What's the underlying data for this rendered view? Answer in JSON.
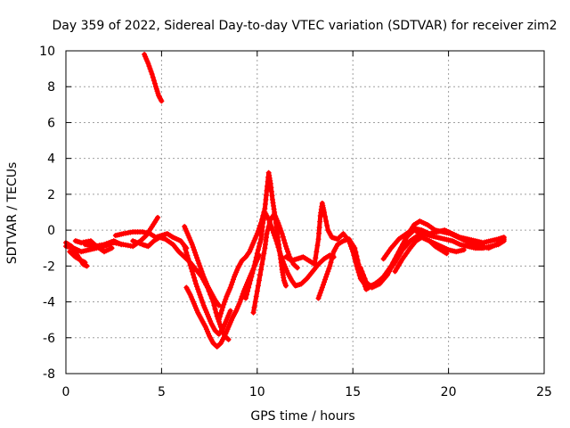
{
  "chart_data": {
    "type": "scatter",
    "title": "Day 359 of 2022, Sidereal Day-to-day VTEC variation (SDTVAR) for receiver zim2",
    "xlabel": "GPS time / hours",
    "ylabel": "SDTVAR / TECUs",
    "xlim": [
      0,
      25
    ],
    "ylim": [
      -8,
      10
    ],
    "xticks": [
      0,
      5,
      10,
      15,
      20,
      25
    ],
    "yticks": [
      -8,
      -6,
      -4,
      -2,
      0,
      2,
      4,
      6,
      8,
      10
    ],
    "grid": true,
    "marker": "+",
    "color": "#ff0000",
    "series": [
      {
        "name": "SDTVAR",
        "tracks": [
          [
            [
              0.0,
              -0.9
            ],
            [
              0.4,
              -1.0
            ],
            [
              0.8,
              -1.2
            ],
            [
              1.2,
              -1.1
            ],
            [
              1.6,
              -1.0
            ],
            [
              2.0,
              -0.9
            ],
            [
              2.5,
              -0.7
            ],
            [
              3.0,
              -0.8
            ],
            [
              3.5,
              -0.9
            ],
            [
              3.9,
              -0.6
            ],
            [
              4.2,
              -0.3
            ],
            [
              4.5,
              0.2
            ],
            [
              4.8,
              0.7
            ]
          ],
          [
            [
              0.0,
              -0.7
            ],
            [
              0.3,
              -0.9
            ],
            [
              0.6,
              -1.4
            ],
            [
              0.9,
              -1.9
            ],
            [
              1.1,
              -2.0
            ]
          ],
          [
            [
              0.2,
              -1.2
            ],
            [
              0.5,
              -1.5
            ],
            [
              0.8,
              -1.7
            ],
            [
              1.0,
              -1.8
            ]
          ],
          [
            [
              0.5,
              -0.6
            ],
            [
              0.8,
              -0.7
            ],
            [
              1.3,
              -0.6
            ],
            [
              1.6,
              -0.9
            ],
            [
              2.0,
              -1.2
            ],
            [
              2.4,
              -1.0
            ]
          ],
          [
            [
              1.0,
              -0.8
            ],
            [
              1.5,
              -0.9
            ],
            [
              2.0,
              -0.8
            ],
            [
              2.5,
              -0.6
            ],
            [
              2.9,
              -0.8
            ]
          ],
          [
            [
              2.6,
              -0.3
            ],
            [
              3.0,
              -0.2
            ],
            [
              3.5,
              -0.1
            ],
            [
              4.0,
              -0.1
            ],
            [
              4.4,
              -0.2
            ],
            [
              4.7,
              -0.4
            ],
            [
              5.0,
              -0.3
            ],
            [
              5.3,
              -0.2
            ],
            [
              5.6,
              -0.4
            ],
            [
              6.0,
              -0.6
            ],
            [
              6.3,
              -1.0
            ]
          ],
          [
            [
              3.5,
              -0.6
            ],
            [
              4.0,
              -0.8
            ],
            [
              4.3,
              -0.9
            ],
            [
              4.6,
              -0.6
            ],
            [
              4.9,
              -0.4
            ],
            [
              5.2,
              -0.5
            ],
            [
              5.6,
              -0.8
            ],
            [
              5.9,
              -1.2
            ],
            [
              6.2,
              -1.5
            ],
            [
              6.5,
              -1.8
            ],
            [
              6.8,
              -2.2
            ],
            [
              7.1,
              -2.6
            ],
            [
              7.4,
              -3.2
            ],
            [
              7.7,
              -4.0
            ],
            [
              7.9,
              -4.8
            ],
            [
              8.1,
              -5.4
            ],
            [
              8.3,
              -5.9
            ],
            [
              8.5,
              -6.1
            ]
          ],
          [
            [
              4.1,
              9.8
            ],
            [
              4.3,
              9.3
            ],
            [
              4.5,
              8.7
            ],
            [
              4.7,
              8.0
            ],
            [
              4.85,
              7.5
            ],
            [
              5.0,
              7.2
            ]
          ],
          [
            [
              6.3,
              -3.2
            ],
            [
              6.5,
              -3.6
            ],
            [
              6.7,
              -4.1
            ],
            [
              6.9,
              -4.6
            ],
            [
              7.1,
              -5.0
            ],
            [
              7.3,
              -5.4
            ],
            [
              7.5,
              -5.9
            ],
            [
              7.7,
              -6.3
            ],
            [
              7.9,
              -6.5
            ],
            [
              8.1,
              -6.3
            ],
            [
              8.3,
              -5.9
            ],
            [
              8.5,
              -5.4
            ],
            [
              8.7,
              -4.9
            ],
            [
              8.9,
              -4.5
            ],
            [
              9.1,
              -4.0
            ],
            [
              9.3,
              -3.4
            ],
            [
              9.5,
              -2.9
            ],
            [
              9.7,
              -2.4
            ],
            [
              9.9,
              -1.9
            ],
            [
              10.1,
              -1.4
            ]
          ],
          [
            [
              6.2,
              -0.9
            ],
            [
              6.4,
              -1.6
            ],
            [
              6.6,
              -2.3
            ],
            [
              6.8,
              -3.0
            ],
            [
              7.0,
              -3.6
            ],
            [
              7.2,
              -4.2
            ],
            [
              7.4,
              -4.7
            ],
            [
              7.6,
              -5.2
            ],
            [
              7.8,
              -5.6
            ],
            [
              8.0,
              -5.8
            ],
            [
              8.2,
              -5.5
            ],
            [
              8.4,
              -5.0
            ],
            [
              8.6,
              -4.5
            ]
          ],
          [
            [
              6.2,
              0.2
            ],
            [
              6.4,
              -0.3
            ],
            [
              6.6,
              -0.8
            ],
            [
              6.8,
              -1.4
            ],
            [
              7.0,
              -2.0
            ],
            [
              7.2,
              -2.6
            ],
            [
              7.4,
              -3.1
            ],
            [
              7.6,
              -3.5
            ],
            [
              7.8,
              -3.9
            ],
            [
              8.0,
              -4.2
            ]
          ],
          [
            [
              8.0,
              -5.0
            ],
            [
              8.2,
              -4.3
            ],
            [
              8.4,
              -3.7
            ],
            [
              8.6,
              -3.2
            ],
            [
              8.8,
              -2.6
            ],
            [
              9.0,
              -2.1
            ],
            [
              9.2,
              -1.7
            ],
            [
              9.4,
              -1.5
            ],
            [
              9.6,
              -1.2
            ],
            [
              9.8,
              -0.7
            ],
            [
              10.0,
              -0.2
            ],
            [
              10.2,
              0.4
            ],
            [
              10.4,
              1.2
            ],
            [
              10.5,
              2.2
            ],
            [
              10.6,
              3.2
            ],
            [
              10.7,
              2.6
            ],
            [
              10.8,
              1.7
            ],
            [
              10.9,
              1.0
            ],
            [
              11.0,
              0.2
            ],
            [
              11.1,
              -0.6
            ],
            [
              11.2,
              -1.4
            ],
            [
              11.3,
              -2.2
            ],
            [
              11.4,
              -2.8
            ],
            [
              11.5,
              -3.1
            ]
          ],
          [
            [
              9.4,
              -3.8
            ],
            [
              9.6,
              -3.0
            ],
            [
              9.8,
              -2.2
            ],
            [
              10.0,
              -1.3
            ],
            [
              10.2,
              -0.5
            ],
            [
              10.3,
              0.4
            ],
            [
              10.4,
              1.0
            ],
            [
              10.6,
              0.6
            ],
            [
              10.8,
              0.0
            ],
            [
              11.0,
              -0.6
            ],
            [
              11.2,
              -1.3
            ],
            [
              11.4,
              -1.9
            ],
            [
              11.6,
              -2.4
            ],
            [
              11.8,
              -2.8
            ],
            [
              12.0,
              -3.1
            ],
            [
              12.3,
              -3.0
            ],
            [
              12.6,
              -2.7
            ],
            [
              12.9,
              -2.3
            ],
            [
              13.2,
              -1.9
            ],
            [
              13.5,
              -1.6
            ],
            [
              13.8,
              -1.4
            ],
            [
              14.0,
              -1.5
            ]
          ],
          [
            [
              9.8,
              -4.6
            ],
            [
              10.0,
              -3.4
            ],
            [
              10.2,
              -2.2
            ],
            [
              10.4,
              -1.0
            ],
            [
              10.5,
              -0.2
            ],
            [
              10.7,
              0.6
            ],
            [
              10.9,
              0.9
            ],
            [
              11.1,
              0.4
            ],
            [
              11.3,
              -0.2
            ],
            [
              11.5,
              -0.9
            ],
            [
              11.7,
              -1.5
            ],
            [
              11.9,
              -1.9
            ],
            [
              12.1,
              -2.1
            ]
          ],
          [
            [
              11.5,
              -1.5
            ],
            [
              11.8,
              -1.7
            ],
            [
              12.1,
              -1.6
            ],
            [
              12.4,
              -1.5
            ],
            [
              12.7,
              -1.7
            ],
            [
              13.0,
              -1.9
            ],
            [
              13.2,
              -0.5
            ],
            [
              13.3,
              0.8
            ],
            [
              13.4,
              1.5
            ],
            [
              13.5,
              1.0
            ],
            [
              13.7,
              0.0
            ],
            [
              13.9,
              -0.4
            ],
            [
              14.2,
              -0.5
            ],
            [
              14.5,
              -0.2
            ],
            [
              14.8,
              -0.6
            ],
            [
              15.0,
              -1.2
            ],
            [
              15.2,
              -2.0
            ],
            [
              15.4,
              -2.7
            ],
            [
              15.6,
              -3.0
            ],
            [
              15.9,
              -3.1
            ],
            [
              16.2,
              -3.0
            ],
            [
              16.6,
              -2.6
            ],
            [
              17.0,
              -2.0
            ],
            [
              17.4,
              -1.2
            ],
            [
              17.8,
              -0.4
            ],
            [
              18.2,
              0.0
            ],
            [
              18.6,
              -0.2
            ],
            [
              19.0,
              -0.3
            ],
            [
              19.4,
              -0.4
            ],
            [
              19.8,
              -0.5
            ],
            [
              20.2,
              -0.6
            ],
            [
              20.6,
              -0.8
            ],
            [
              21.0,
              -0.9
            ],
            [
              21.4,
              -1.0
            ],
            [
              21.8,
              -1.0
            ],
            [
              22.2,
              -0.9
            ],
            [
              22.6,
              -0.8
            ],
            [
              22.9,
              -0.6
            ]
          ],
          [
            [
              13.2,
              -3.8
            ],
            [
              13.4,
              -3.2
            ],
            [
              13.6,
              -2.6
            ],
            [
              13.8,
              -2.0
            ],
            [
              14.0,
              -1.2
            ],
            [
              14.2,
              -0.8
            ],
            [
              14.5,
              -0.6
            ],
            [
              14.8,
              -0.5
            ],
            [
              15.1,
              -1.0
            ],
            [
              15.3,
              -1.9
            ],
            [
              15.5,
              -2.7
            ],
            [
              15.7,
              -3.3
            ],
            [
              16.0,
              -3.1
            ],
            [
              16.4,
              -2.8
            ],
            [
              16.8,
              -2.4
            ],
            [
              17.2,
              -1.8
            ],
            [
              17.6,
              -1.1
            ],
            [
              18.0,
              -0.6
            ],
            [
              18.4,
              -0.3
            ],
            [
              18.8,
              -0.5
            ],
            [
              19.2,
              -0.7
            ],
            [
              19.6,
              -0.9
            ],
            [
              20.0,
              -1.1
            ],
            [
              20.4,
              -1.2
            ],
            [
              20.8,
              -1.1
            ]
          ],
          [
            [
              15.4,
              -2.1
            ],
            [
              15.7,
              -2.9
            ],
            [
              16.0,
              -3.2
            ],
            [
              16.4,
              -3.0
            ],
            [
              16.8,
              -2.5
            ],
            [
              17.2,
              -1.7
            ],
            [
              17.6,
              -0.9
            ],
            [
              17.9,
              -0.2
            ],
            [
              18.2,
              0.3
            ],
            [
              18.5,
              0.5
            ],
            [
              18.9,
              0.3
            ],
            [
              19.3,
              0.0
            ],
            [
              19.7,
              -0.1
            ],
            [
              20.1,
              -0.2
            ],
            [
              20.5,
              -0.4
            ],
            [
              20.9,
              -0.6
            ],
            [
              21.3,
              -0.8
            ],
            [
              21.7,
              -0.9
            ],
            [
              22.1,
              -1.0
            ],
            [
              22.5,
              -0.8
            ],
            [
              22.9,
              -0.5
            ]
          ],
          [
            [
              16.6,
              -1.6
            ],
            [
              17.0,
              -1.0
            ],
            [
              17.4,
              -0.5
            ],
            [
              17.8,
              -0.2
            ],
            [
              18.2,
              0.1
            ],
            [
              18.6,
              0.0
            ],
            [
              19.0,
              -0.2
            ],
            [
              19.4,
              -0.1
            ],
            [
              19.8,
              0.0
            ],
            [
              20.2,
              -0.2
            ],
            [
              20.6,
              -0.4
            ],
            [
              21.0,
              -0.5
            ],
            [
              21.4,
              -0.6
            ],
            [
              21.8,
              -0.7
            ],
            [
              22.2,
              -0.6
            ],
            [
              22.6,
              -0.5
            ],
            [
              22.9,
              -0.4
            ]
          ],
          [
            [
              17.2,
              -2.3
            ],
            [
              17.6,
              -1.6
            ],
            [
              18.0,
              -1.0
            ],
            [
              18.3,
              -0.6
            ],
            [
              18.6,
              -0.4
            ],
            [
              19.0,
              -0.6
            ],
            [
              19.3,
              -0.9
            ],
            [
              19.6,
              -1.1
            ],
            [
              19.9,
              -1.3
            ]
          ]
        ]
      }
    ]
  }
}
